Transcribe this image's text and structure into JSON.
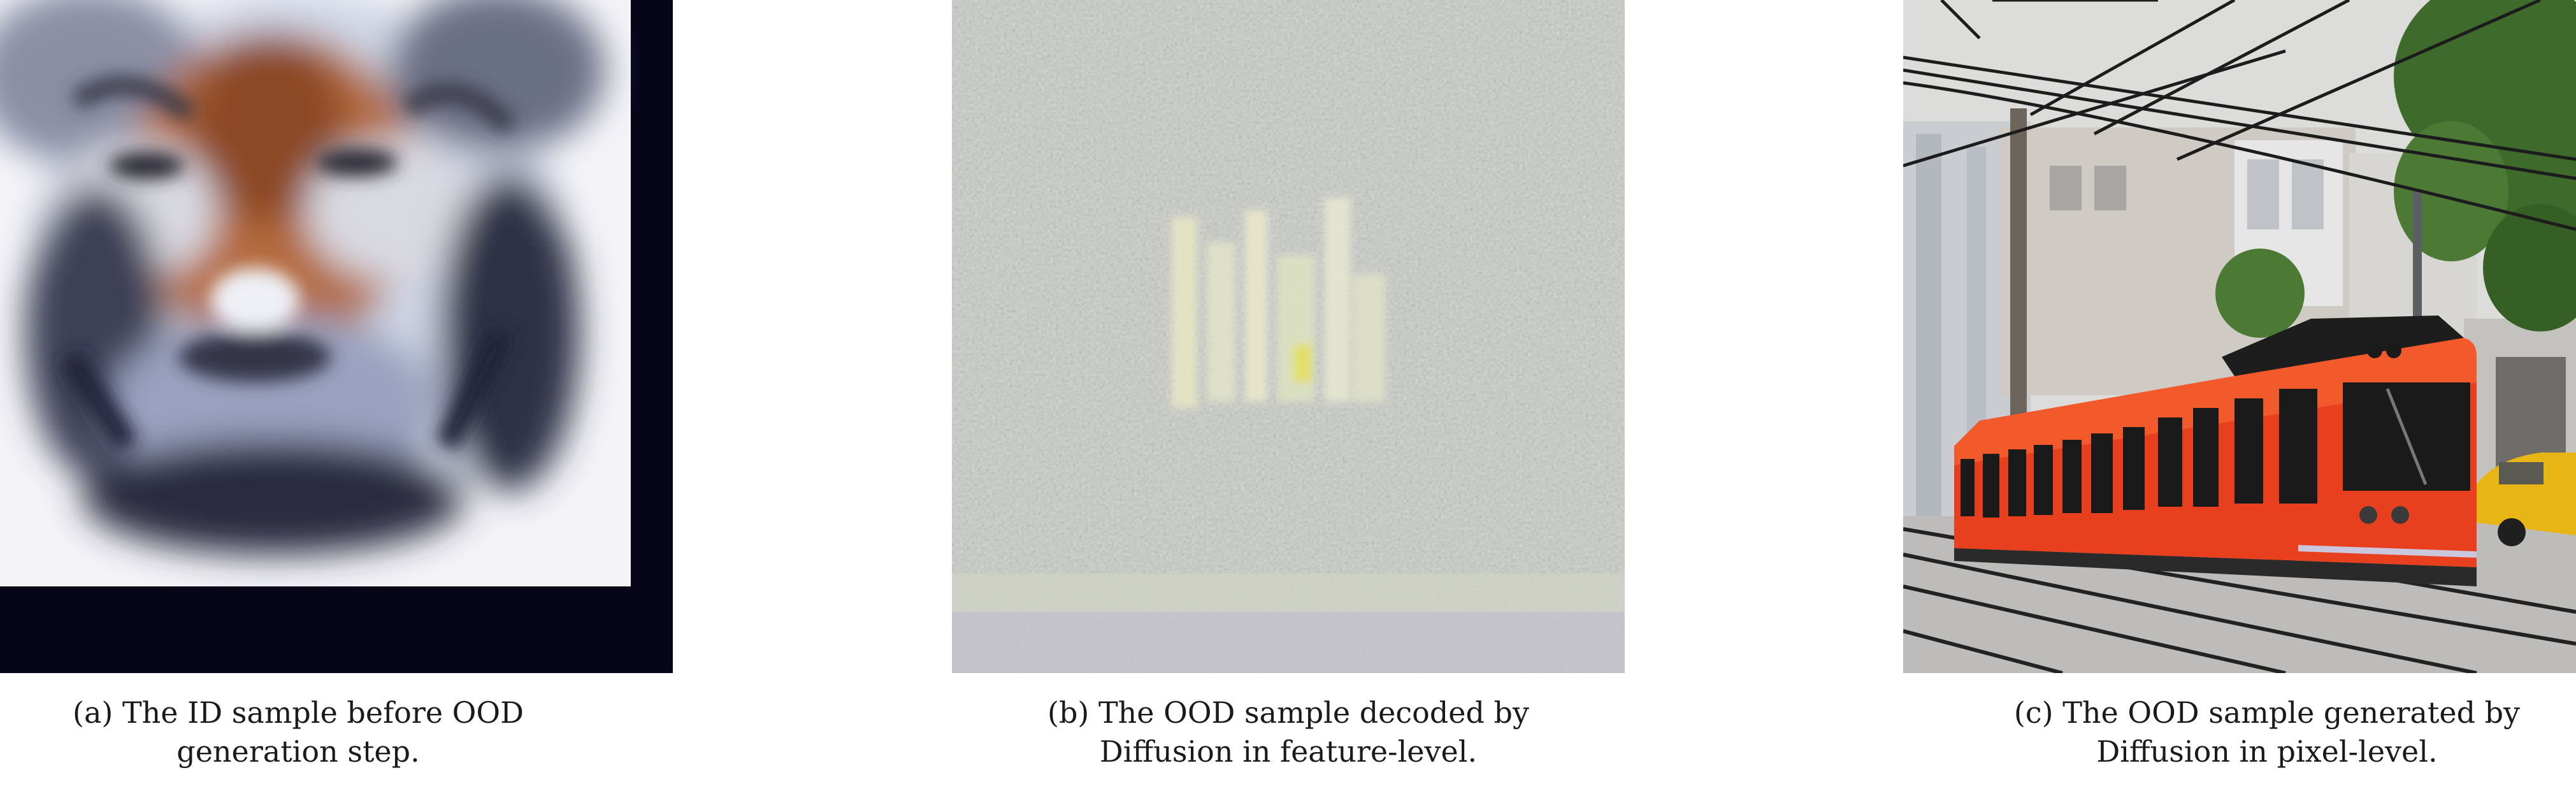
{
  "figure": {
    "panels": [
      {
        "id": "a",
        "caption_line1": "(a) The ID sample before OOD",
        "caption_line2": "generation step.",
        "image_subject": "tiger-face-low-resolution"
      },
      {
        "id": "b",
        "caption_line1": "(b) The OOD sample decoded by",
        "caption_line2": "Diffusion in feature-level.",
        "image_subject": "noisy-gray-decoded-image"
      },
      {
        "id": "c",
        "caption_line1": "(c) The OOD sample generated by",
        "caption_line2": "Diffusion in pixel-level.",
        "image_subject": "red-tram-on-street"
      }
    ],
    "colors": {
      "tram_red": "#e8401f",
      "noise_gray": "#c9cbc6",
      "tiger_orange": "#b46a3c",
      "frame_dark": "#070619"
    }
  }
}
